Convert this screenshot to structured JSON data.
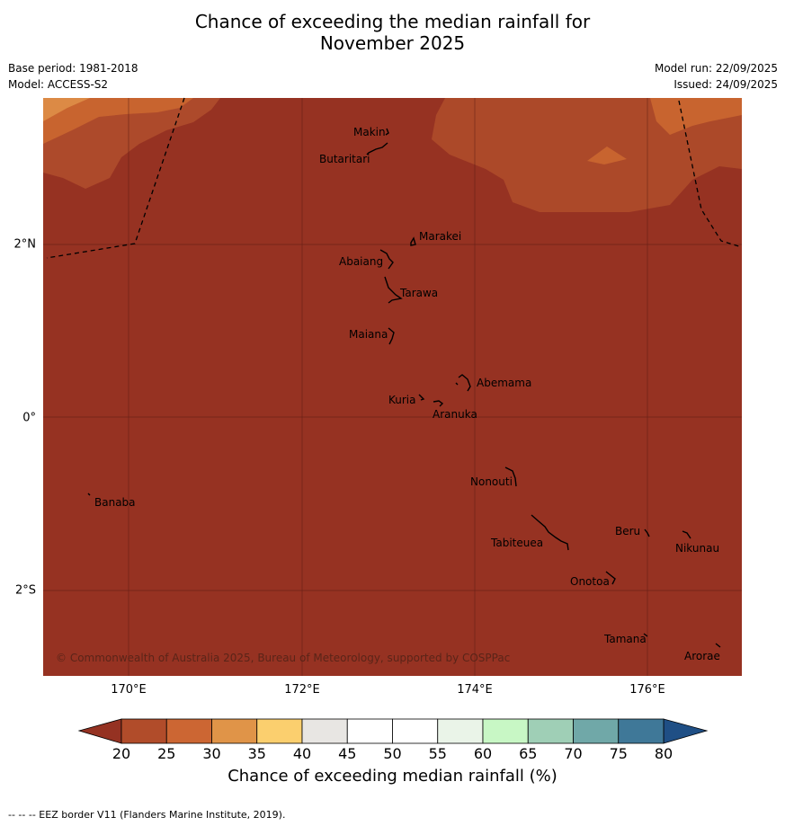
{
  "title_line1": "Chance of exceeding the median rainfall for",
  "title_line2": "November 2025",
  "base_period": "Base period: 1981-2018",
  "model": "Model: ACCESS-S2",
  "model_run": "Model run: 22/09/2025",
  "issued": "Issued: 24/09/2025",
  "x_ticks": [
    "170°E",
    "172°E",
    "174°E",
    "176°E"
  ],
  "y_ticks": [
    "2°N",
    "0°",
    "2°S"
  ],
  "islands": [
    {
      "name": "Makin"
    },
    {
      "name": "Butaritari"
    },
    {
      "name": "Marakei"
    },
    {
      "name": "Abaiang"
    },
    {
      "name": "Tarawa"
    },
    {
      "name": "Maiana"
    },
    {
      "name": "Abemama"
    },
    {
      "name": "Kuria"
    },
    {
      "name": "Aranuka"
    },
    {
      "name": "Nonouti"
    },
    {
      "name": "Banaba"
    },
    {
      "name": "Beru"
    },
    {
      "name": "Nikunau"
    },
    {
      "name": "Tabiteuea"
    },
    {
      "name": "Onotoa"
    },
    {
      "name": "Tamana"
    },
    {
      "name": "Arorae"
    }
  ],
  "copyright": "© Commonwealth of Australia 2025, Bureau of Meteorology, supported by COSPPac",
  "colorbar": {
    "labels": [
      "20",
      "25",
      "30",
      "35",
      "40",
      "45",
      "50",
      "55",
      "60",
      "65",
      "70",
      "75",
      "80"
    ],
    "colors": [
      "#b14c2a",
      "#cc6633",
      "#e09448",
      "#fbcf6e",
      "#e8e6e3",
      "#ffffff",
      "#ffffff",
      "#eaf4e8",
      "#c8f7c5",
      "#9fcfb6",
      "#70a8a8",
      "#3f7898"
    ],
    "under_color": "#953222",
    "over_color": "#1f4f85",
    "title": "Chance of exceeding median rainfall (%)"
  },
  "footer": "--  --  -- EEZ border V11 (Flanders Marine Institute, 2019)."
}
